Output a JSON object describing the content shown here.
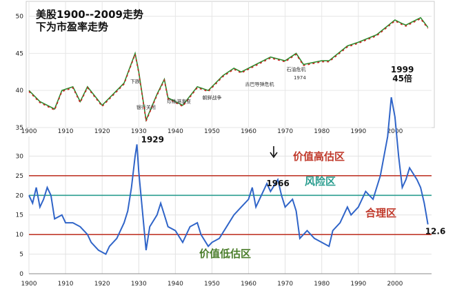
{
  "chart_data": [
    {
      "type": "line",
      "title": "美股1900--2009走势",
      "series": [
        {
          "values": [
            [
              1900,
              40
            ],
            [
              1903,
              38.5
            ],
            [
              1907,
              37.5
            ],
            [
              1909,
              40
            ],
            [
              1912,
              40.5
            ],
            [
              1914,
              38.5
            ],
            [
              1916,
              40.5
            ],
            [
              1920,
              38
            ],
            [
              1923,
              39.5
            ],
            [
              1926,
              41
            ],
            [
              1929,
              45
            ],
            [
              1930,
              42.5
            ],
            [
              1932,
              36
            ],
            [
              1935,
              39.5
            ],
            [
              1937,
              41.5
            ],
            [
              1938,
              39
            ],
            [
              1942,
              38
            ],
            [
              1946,
              40.5
            ],
            [
              1949,
              40
            ],
            [
              1953,
              42
            ],
            [
              1956,
              43
            ],
            [
              1958,
              42.5
            ],
            [
              1962,
              43.5
            ],
            [
              1966,
              44.5
            ],
            [
              1970,
              44
            ],
            [
              1973,
              45
            ],
            [
              1975,
              43.5
            ],
            [
              1980,
              44
            ],
            [
              1982,
              44
            ],
            [
              1987,
              46
            ],
            [
              1990,
              46.5
            ],
            [
              1995,
              47.5
            ],
            [
              2000,
              49.5
            ],
            [
              2002,
              49
            ],
            [
              2003,
              48.8
            ],
            [
              2007,
              49.8
            ],
            [
              2009,
              48.5
            ]
          ]
        }
      ],
      "xlim": [
        1900,
        2010
      ],
      "yticks": [
        "35",
        "40",
        "45",
        "50"
      ],
      "xticks": [
        "1900",
        "1910",
        "1920",
        "1930",
        "1940",
        "1950",
        "1960",
        "1970",
        "1980",
        "1990",
        "2000"
      ],
      "title_line2": "下为市盈率走势",
      "event_labels": [
        "下跌",
        "银行关闭",
        "珍珠港事变",
        "朝鲜战争",
        "古巴导弹危机",
        "石油危机",
        "1974"
      ]
    },
    {
      "type": "line",
      "series": [
        {
          "values": [
            [
              1900,
              20
            ],
            [
              1901,
              18
            ],
            [
              1902,
              22
            ],
            [
              1903,
              17
            ],
            [
              1904,
              19
            ],
            [
              1905,
              22
            ],
            [
              1906,
              20
            ],
            [
              1907,
              14
            ],
            [
              1909,
              15
            ],
            [
              1910,
              13
            ],
            [
              1912,
              13
            ],
            [
              1914,
              12
            ],
            [
              1916,
              10
            ],
            [
              1917,
              8
            ],
            [
              1919,
              6
            ],
            [
              1920,
              5.5
            ],
            [
              1921,
              5
            ],
            [
              1922,
              7
            ],
            [
              1924,
              9
            ],
            [
              1926,
              13
            ],
            [
              1927,
              16
            ],
            [
              1928,
              22
            ],
            [
              1929,
              30
            ],
            [
              1929.5,
              33
            ],
            [
              1930,
              26
            ],
            [
              1931,
              16
            ],
            [
              1932,
              6
            ],
            [
              1933,
              12
            ],
            [
              1935,
              15
            ],
            [
              1936,
              18
            ],
            [
              1937,
              15
            ],
            [
              1938,
              12
            ],
            [
              1940,
              11
            ],
            [
              1942,
              8
            ],
            [
              1944,
              12
            ],
            [
              1946,
              13
            ],
            [
              1947,
              10
            ],
            [
              1949,
              7
            ],
            [
              1950,
              8
            ],
            [
              1952,
              9
            ],
            [
              1954,
              12
            ],
            [
              1956,
              15
            ],
            [
              1958,
              17
            ],
            [
              1960,
              19
            ],
            [
              1961,
              22
            ],
            [
              1962,
              17
            ],
            [
              1964,
              21
            ],
            [
              1965,
              23
            ],
            [
              1966,
              21
            ],
            [
              1968,
              24
            ],
            [
              1969,
              20
            ],
            [
              1970,
              17
            ],
            [
              1972,
              19
            ],
            [
              1973,
              16
            ],
            [
              1974,
              9
            ],
            [
              1976,
              11
            ],
            [
              1978,
              9
            ],
            [
              1980,
              8
            ],
            [
              1982,
              7
            ],
            [
              1983,
              11
            ],
            [
              1985,
              13
            ],
            [
              1987,
              17
            ],
            [
              1988,
              15
            ],
            [
              1990,
              17
            ],
            [
              1992,
              21
            ],
            [
              1994,
              19
            ],
            [
              1996,
              25
            ],
            [
              1998,
              35
            ],
            [
              1999,
              45
            ],
            [
              2000,
              40
            ],
            [
              2001,
              30
            ],
            [
              2002,
              22
            ],
            [
              2003,
              24
            ],
            [
              2004,
              27
            ],
            [
              2006,
              24
            ],
            [
              2007,
              22
            ],
            [
              2008,
              18
            ],
            [
              2009,
              12.6
            ]
          ]
        }
      ],
      "xlim": [
        1900,
        2010
      ],
      "ylim": [
        0,
        35
      ],
      "yticks": [
        "0",
        "5",
        "10",
        "15",
        "20",
        "25",
        "30"
      ],
      "xticks": [
        "1900",
        "1910",
        "1920",
        "1930",
        "1940",
        "1950",
        "1960",
        "1970",
        "1980",
        "1990",
        "2000"
      ],
      "reference_lines": [
        {
          "value": 25,
          "label": "价值高估区",
          "color": "#c0392b"
        },
        {
          "value": 20,
          "label": "风险区",
          "color": "#2a9d8f"
        },
        {
          "value": 10,
          "label": "合理区",
          "color": "#c0392b"
        }
      ],
      "zone_labels": {
        "low": "价值低估区"
      },
      "annotations": [
        {
          "x": 1929.5,
          "y": 33,
          "text": "1929"
        },
        {
          "x": 1966,
          "y": 21,
          "text": "1966"
        },
        {
          "x": 1999,
          "y": 45,
          "text": "1999"
        },
        {
          "x": 1999,
          "y": 45,
          "text": "45倍"
        },
        {
          "x": 2009,
          "y": 12.6,
          "text": "12.6"
        }
      ]
    }
  ]
}
